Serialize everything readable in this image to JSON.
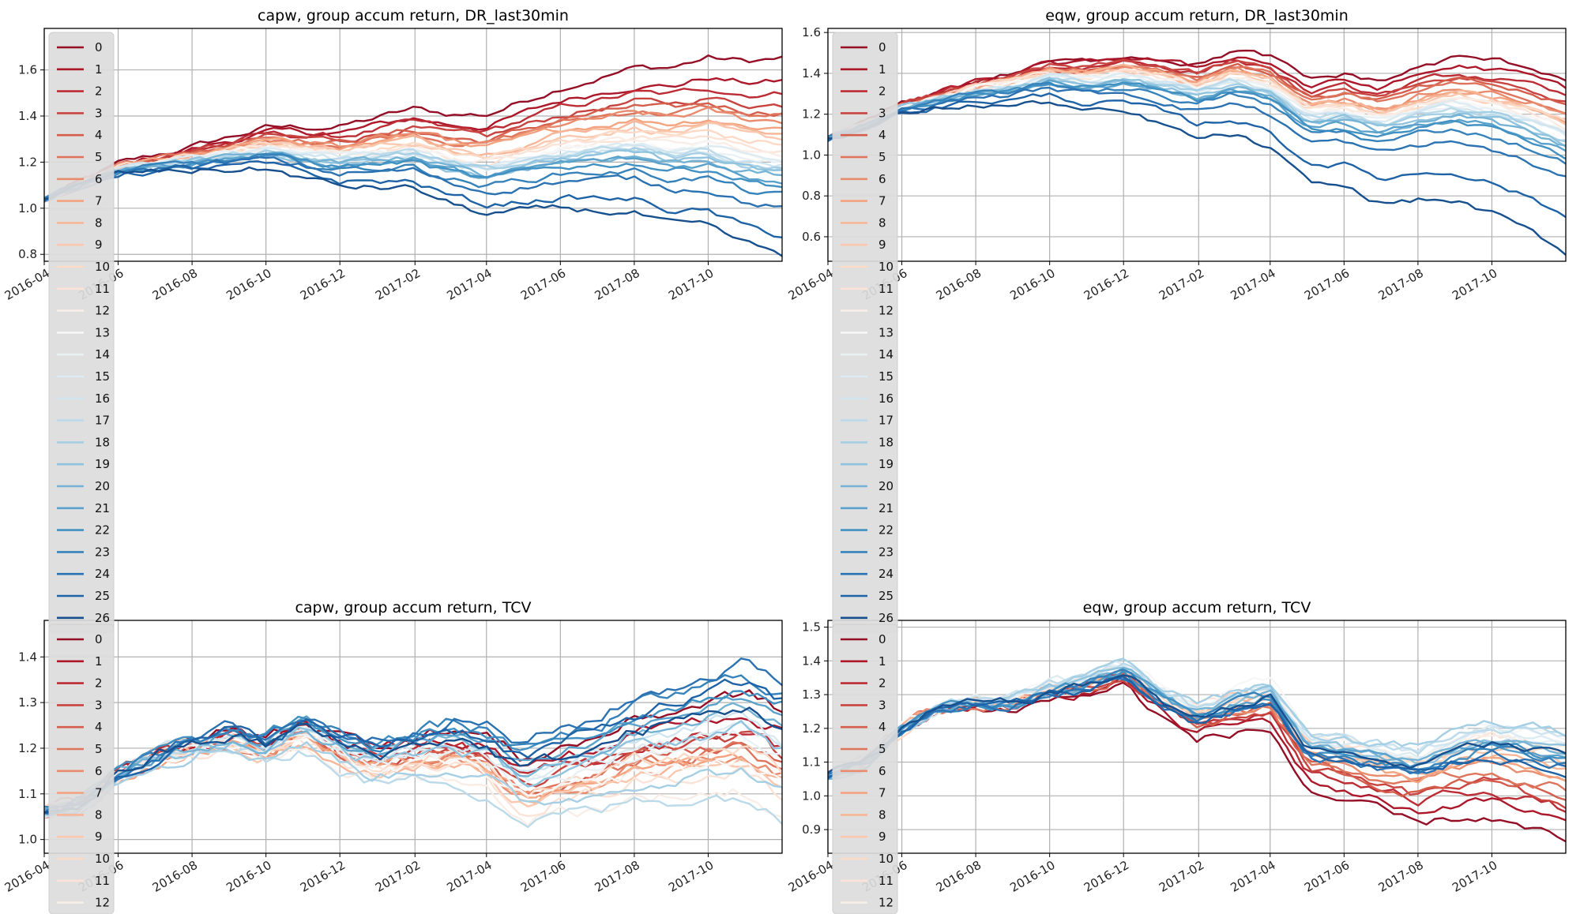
{
  "legend_ids": [
    "0",
    "1",
    "2",
    "3",
    "4",
    "5",
    "6",
    "7",
    "8",
    "9",
    "10",
    "11",
    "12",
    "13",
    "14",
    "15",
    "16",
    "17",
    "18",
    "19",
    "20",
    "21",
    "22",
    "23",
    "24",
    "25",
    "26"
  ],
  "chart_data": [
    {
      "type": "line",
      "title": "capw, group accum return, DR_last30min",
      "x_range": [
        "2016-04-01",
        "2017-12-01"
      ],
      "x_ticks": [
        "2016-04",
        "2016-06",
        "2016-08",
        "2016-10",
        "2016-12",
        "2017-02",
        "2017-04",
        "2017-06",
        "2017-08",
        "2017-10"
      ],
      "ylim": [
        0.77,
        1.78
      ],
      "y_ticks": [
        0.8,
        1.0,
        1.2,
        1.4,
        1.6
      ],
      "grid": true,
      "legend": "upper-left",
      "end_values": [
        1.65,
        1.55,
        1.5,
        1.45,
        1.42,
        1.4,
        1.38,
        1.35,
        1.33,
        1.3,
        1.28,
        1.25,
        1.24,
        1.22,
        1.2,
        1.2,
        1.19,
        1.18,
        1.17,
        1.15,
        1.14,
        1.12,
        1.1,
        1.05,
        1.0,
        0.88,
        0.8
      ],
      "shape": [
        [
          0.0,
          1.04
        ],
        [
          0.05,
          1.1
        ],
        [
          0.1,
          1.16
        ],
        [
          0.15,
          1.18
        ],
        [
          0.2,
          1.2
        ],
        [
          0.25,
          1.22
        ],
        [
          0.3,
          1.24
        ],
        [
          0.35,
          1.22
        ],
        [
          0.4,
          1.2
        ],
        [
          0.45,
          1.22
        ],
        [
          0.5,
          1.24
        ],
        [
          0.55,
          1.2
        ],
        [
          0.6,
          1.18
        ],
        [
          0.65,
          1.22
        ],
        [
          0.7,
          1.26
        ],
        [
          0.75,
          1.28
        ],
        [
          0.8,
          1.3
        ],
        [
          0.85,
          1.28
        ],
        [
          0.9,
          1.3
        ],
        [
          0.95,
          1.26
        ],
        [
          1.0,
          1.25
        ]
      ],
      "band": [
        0.025,
        0.06
      ]
    },
    {
      "type": "line",
      "title": "eqw, group accum return, DR_last30min",
      "x_range": [
        "2016-04-01",
        "2017-12-01"
      ],
      "x_ticks": [
        "2016-04",
        "2016-06",
        "2016-08",
        "2016-10",
        "2016-12",
        "2017-02",
        "2017-04",
        "2017-06",
        "2017-08",
        "2017-10"
      ],
      "ylim": [
        0.48,
        1.62
      ],
      "y_ticks": [
        0.6,
        0.8,
        1.0,
        1.2,
        1.4,
        1.6
      ],
      "grid": true,
      "legend": "upper-left",
      "end_values": [
        1.38,
        1.33,
        1.28,
        1.26,
        1.24,
        1.22,
        1.2,
        1.18,
        1.17,
        1.16,
        1.15,
        1.14,
        1.13,
        1.12,
        1.11,
        1.1,
        1.09,
        1.08,
        1.07,
        1.06,
        1.04,
        1.02,
        1.0,
        0.96,
        0.88,
        0.7,
        0.52
      ],
      "shape": [
        [
          0.0,
          1.08
        ],
        [
          0.05,
          1.14
        ],
        [
          0.1,
          1.22
        ],
        [
          0.15,
          1.26
        ],
        [
          0.2,
          1.3
        ],
        [
          0.25,
          1.32
        ],
        [
          0.3,
          1.36
        ],
        [
          0.35,
          1.34
        ],
        [
          0.4,
          1.36
        ],
        [
          0.45,
          1.34
        ],
        [
          0.5,
          1.3
        ],
        [
          0.55,
          1.36
        ],
        [
          0.6,
          1.32
        ],
        [
          0.65,
          1.2
        ],
        [
          0.7,
          1.22
        ],
        [
          0.75,
          1.18
        ],
        [
          0.8,
          1.24
        ],
        [
          0.85,
          1.28
        ],
        [
          0.9,
          1.26
        ],
        [
          0.95,
          1.22
        ],
        [
          1.0,
          1.16
        ]
      ],
      "band": [
        0.03,
        0.1
      ]
    },
    {
      "type": "line",
      "title": "capw, group accum return, TCV",
      "x_range": [
        "2016-04-01",
        "2017-12-01"
      ],
      "x_ticks": [
        "2016-04",
        "2016-06",
        "2016-08",
        "2016-10",
        "2016-12",
        "2017-02",
        "2017-04",
        "2017-06",
        "2017-08",
        "2017-10"
      ],
      "ylim": [
        0.97,
        1.48
      ],
      "y_ticks": [
        1.0,
        1.1,
        1.2,
        1.3,
        1.4
      ],
      "grid": true,
      "legend": "upper-left",
      "end_values": [
        1.28,
        1.24,
        1.2,
        1.18,
        1.16,
        1.15,
        1.14,
        1.13,
        1.12,
        1.11,
        1.15,
        1.1,
        1.05,
        1.12,
        1.18,
        1.2,
        1.22,
        1.04,
        1.1,
        1.2,
        1.25,
        1.28,
        1.3,
        1.32,
        1.35,
        1.3,
        1.25
      ],
      "shape": [
        [
          0.0,
          1.06
        ],
        [
          0.05,
          1.08
        ],
        [
          0.1,
          1.14
        ],
        [
          0.15,
          1.18
        ],
        [
          0.2,
          1.2
        ],
        [
          0.25,
          1.22
        ],
        [
          0.3,
          1.2
        ],
        [
          0.35,
          1.24
        ],
        [
          0.4,
          1.2
        ],
        [
          0.45,
          1.18
        ],
        [
          0.5,
          1.2
        ],
        [
          0.55,
          1.22
        ],
        [
          0.6,
          1.2
        ],
        [
          0.65,
          1.15
        ],
        [
          0.7,
          1.18
        ],
        [
          0.75,
          1.2
        ],
        [
          0.8,
          1.24
        ],
        [
          0.85,
          1.26
        ],
        [
          0.9,
          1.28
        ],
        [
          0.95,
          1.3
        ],
        [
          1.0,
          1.26
        ]
      ],
      "band": [
        0.015,
        0.03
      ]
    },
    {
      "type": "line",
      "title": "eqw, group accum return, TCV",
      "x_range": [
        "2016-04-01",
        "2017-12-01"
      ],
      "x_ticks": [
        "2016-04",
        "2016-06",
        "2016-08",
        "2016-10",
        "2016-12",
        "2017-02",
        "2017-04",
        "2017-06",
        "2017-08",
        "2017-10"
      ],
      "ylim": [
        0.83,
        1.52
      ],
      "y_ticks": [
        0.9,
        1.0,
        1.1,
        1.2,
        1.3,
        1.4,
        1.5
      ],
      "grid": true,
      "legend": "upper-left",
      "end_values": [
        0.86,
        0.92,
        0.96,
        0.98,
        1.0,
        1.02,
        1.04,
        1.06,
        1.08,
        1.1,
        1.12,
        1.14,
        1.16,
        1.18,
        1.15,
        1.16,
        1.17,
        1.18,
        1.19,
        1.14,
        1.13,
        1.12,
        1.11,
        1.1,
        1.09,
        1.08,
        1.12
      ],
      "shape": [
        [
          0.0,
          1.06
        ],
        [
          0.05,
          1.1
        ],
        [
          0.1,
          1.2
        ],
        [
          0.15,
          1.26
        ],
        [
          0.2,
          1.28
        ],
        [
          0.25,
          1.28
        ],
        [
          0.3,
          1.32
        ],
        [
          0.35,
          1.34
        ],
        [
          0.4,
          1.38
        ],
        [
          0.45,
          1.3
        ],
        [
          0.5,
          1.24
        ],
        [
          0.55,
          1.28
        ],
        [
          0.6,
          1.3
        ],
        [
          0.65,
          1.14
        ],
        [
          0.7,
          1.12
        ],
        [
          0.75,
          1.1
        ],
        [
          0.8,
          1.08
        ],
        [
          0.85,
          1.12
        ],
        [
          0.9,
          1.14
        ],
        [
          0.95,
          1.12
        ],
        [
          1.0,
          1.1
        ]
      ],
      "band": [
        -0.03,
        0.02
      ]
    }
  ]
}
